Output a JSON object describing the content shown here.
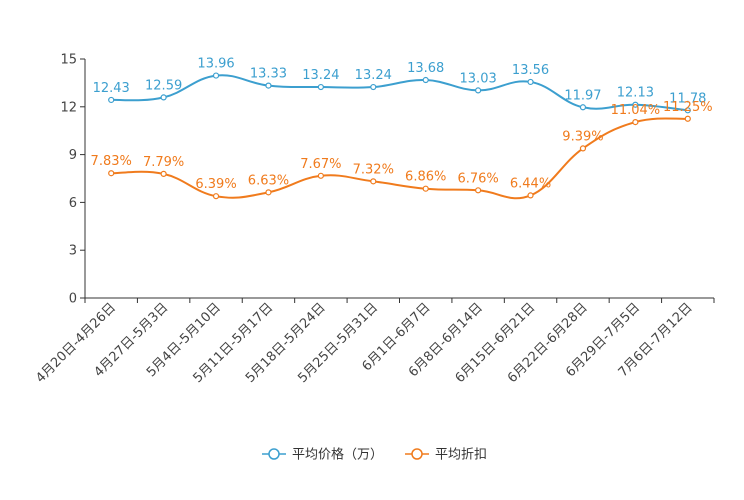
{
  "chart_data": {
    "type": "line",
    "categories": [
      "4月20日-4月26日",
      "4月27日-5月3日",
      "5月4日-5月10日",
      "5月11日-5月17日",
      "5月18日-5月24日",
      "5月25日-5月31日",
      "6月1日-6月7日",
      "6月8日-6月14日",
      "6月15日-6月21日",
      "6月22日-6月28日",
      "6月29日-7月5日",
      "7月6日-7月12日"
    ],
    "ylim": [
      0,
      15
    ],
    "yticks": [
      0,
      3,
      6,
      9,
      12,
      15
    ],
    "series": [
      {
        "name": "平均价格（万）",
        "color": "#3c9fcf",
        "values": [
          12.43,
          12.59,
          13.96,
          13.33,
          13.24,
          13.24,
          13.68,
          13.03,
          13.56,
          11.97,
          12.13,
          11.78
        ],
        "labels": [
          "12.43",
          "12.59",
          "13.96",
          "13.33",
          "13.24",
          "13.24",
          "13.68",
          "13.03",
          "13.56",
          "11.97",
          "12.13",
          "11.78"
        ]
      },
      {
        "name": "平均折扣",
        "color": "#f07b1d",
        "values": [
          7.83,
          7.79,
          6.39,
          6.63,
          7.67,
          7.32,
          6.86,
          6.76,
          6.44,
          9.39,
          11.04,
          11.25
        ],
        "labels": [
          "7.83%",
          "7.79%",
          "6.39%",
          "6.63%",
          "7.67%",
          "7.32%",
          "6.86%",
          "6.76%",
          "6.44%",
          "9.39%",
          "11.04%",
          "11.25%"
        ]
      }
    ],
    "legend_position": "bottom-center",
    "grid": false
  }
}
